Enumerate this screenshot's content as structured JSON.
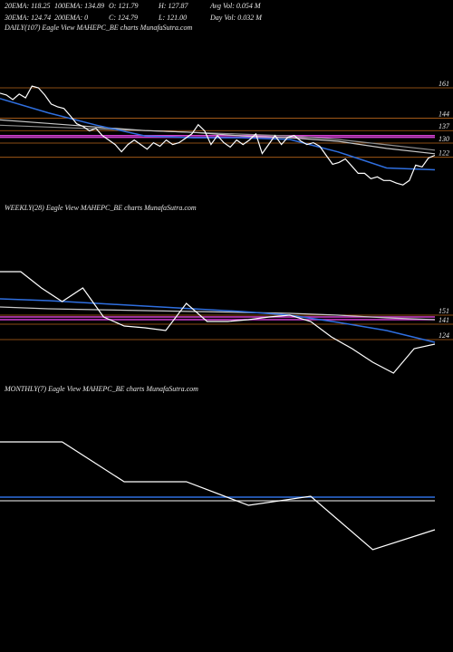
{
  "header": {
    "rows": [
      [
        "20EMA: 118.25",
        "100EMA: 134.89",
        "O: 121.79",
        "H: 127.87",
        "Avg Vol: 0.054  M"
      ],
      [
        "30EMA: 124.74",
        "200EMA: 0",
        "C: 124.79",
        "L: 121.00",
        "Day Vol: 0.032  M"
      ]
    ]
  },
  "chart_data": [
    {
      "type": "line",
      "title": "DAILY(107) Eagle  View  MAHEPC_BE charts MunafaSutra.com",
      "ylim": [
        101,
        190
      ],
      "yticks": [
        161,
        144,
        137,
        130,
        122
      ],
      "tick_color": "#b8651b",
      "levels": [
        {
          "value": 134.2,
          "color": "#d040d0"
        },
        {
          "value": 133.2,
          "color": "#d040d0"
        }
      ],
      "series": [
        {
          "color": "#ffffff",
          "values": [
            158,
            157,
            154.4,
            157.5,
            155.4,
            162,
            161,
            157,
            151.9,
            150.4,
            149.4,
            145.3,
            140.8,
            139.3,
            136.8,
            138.3,
            134.2,
            131.7,
            129.2,
            125.1,
            129.2,
            131.7,
            129.2,
            126.6,
            130.2,
            128.2,
            131.7,
            129.2,
            130.2,
            132.7,
            135.2,
            140.3,
            136.8,
            129.2,
            134.2,
            130.2,
            127.7,
            131.7,
            129.2,
            131.7,
            135.2,
            124.1,
            129.2,
            134.2,
            129.2,
            133.2,
            134.2,
            131.2,
            129.2,
            130.2,
            128.2,
            123.1,
            118.1,
            119.1,
            121.1,
            117.1,
            113,
            113,
            110,
            111,
            109,
            109,
            107.5,
            106.5,
            109,
            117.6,
            116.6,
            121.6,
            123.1
          ]
        },
        {
          "color": "#2f6fe0",
          "values": [
            155,
            147,
            140,
            134,
            133,
            133,
            132,
            125,
            116,
            115
          ]
        },
        {
          "color": "#c8c8c8",
          "values": [
            143,
            141,
            139,
            137,
            136,
            134,
            133,
            131,
            127,
            124
          ]
        },
        {
          "color": "#909090",
          "values": [
            140,
            139,
            138,
            137,
            136,
            135,
            134,
            132,
            129,
            126
          ]
        }
      ]
    },
    {
      "type": "line",
      "title": "WEEKLY(28) Eagle  View  MAHEPC_BE charts MunafaSutra.com",
      "ylim": [
        84,
        254
      ],
      "yticks": [
        141,
        151,
        124
      ],
      "tick_color": "#b8651b",
      "levels": [
        {
          "value": 149,
          "color": "#d040d0"
        },
        {
          "value": 146,
          "color": "#d040d0"
        }
      ],
      "series": [
        {
          "color": "#ffffff",
          "values": [
            199,
            199,
            181,
            166,
            181,
            149,
            139,
            137,
            134,
            164,
            144,
            144,
            146,
            149,
            151,
            144,
            127,
            114,
            99,
            87,
            114,
            119
          ]
        },
        {
          "color": "#2f6fe0",
          "values": [
            169,
            167,
            164,
            161,
            158,
            155,
            151,
            143,
            134,
            121
          ]
        },
        {
          "color": "#c8c8c8",
          "values": [
            160,
            158,
            157,
            156,
            155,
            154,
            153,
            151,
            148,
            146
          ]
        }
      ]
    },
    {
      "type": "line",
      "title": "MONTHLY(7) Eagle  View  MAHEPC_BE charts MunafaSutra.com",
      "ylim": [
        0,
        250
      ],
      "yticks": [],
      "tick_color": "#b8651b",
      "levels": [],
      "series": [
        {
          "color": "#ffffff",
          "values": [
            212,
            212,
            168,
            168,
            142,
            152,
            93,
            115
          ]
        },
        {
          "color": "#2f6fe0",
          "values": [
            151,
            151,
            151,
            151,
            151,
            151,
            151,
            151
          ]
        },
        {
          "color": "#c8c8c8",
          "values": [
            147,
            147,
            147,
            147,
            147,
            147,
            147,
            147
          ]
        }
      ]
    }
  ]
}
